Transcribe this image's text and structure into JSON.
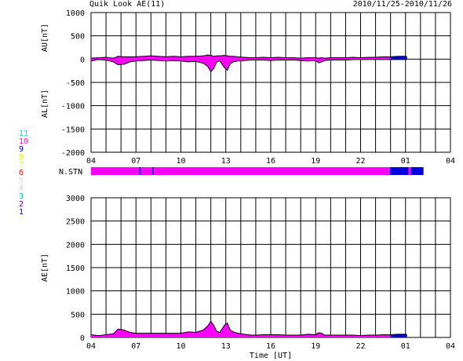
{
  "header": {
    "title": "Quik Look AE(11)",
    "date_range": "2010/11/25-2010/11/26"
  },
  "station_legend": [
    {
      "label": "11",
      "color": "#00e5e5"
    },
    {
      "label": "10",
      "color": "#ff00ff"
    },
    {
      "label": "9",
      "color": "#0000e0"
    },
    {
      "label": "8",
      "color": "#f0f000"
    },
    {
      "label": "7",
      "color": "#c8ff64"
    },
    {
      "label": "6",
      "color": "#ff0000"
    },
    {
      "label": "5",
      "color": "#d0d0d0"
    },
    {
      "label": "4",
      "color": "#d0d0d0"
    },
    {
      "label": "3",
      "color": "#20b2aa"
    },
    {
      "label": "2",
      "color": "#8b008b"
    },
    {
      "label": "1",
      "color": "#0000ff"
    }
  ],
  "chart_data": [
    {
      "type": "area",
      "name": "AU/AL panel",
      "ylabel_top": "AU[nT]",
      "ylabel_bottom": "AL[nT]",
      "xlabel": "",
      "x_tick_labels": [
        "04",
        "07",
        "10",
        "13",
        "16",
        "19",
        "22",
        "01",
        "04"
      ],
      "y_tick_labels": [
        "1000",
        "500",
        "0",
        "-500",
        "-1000",
        "-1500",
        "-2000"
      ],
      "ylim": [
        -2000,
        1000
      ],
      "xlim_hours": [
        4,
        28
      ],
      "grid": true,
      "fill_color": "#ff00ff",
      "recent_color": "#0000e0",
      "switch_hour": 24.0,
      "end_hour": 25.1,
      "x": [
        4.0,
        4.5,
        5.0,
        5.5,
        5.8,
        6.2,
        6.6,
        7.0,
        7.5,
        8.0,
        8.5,
        9.0,
        9.5,
        10.0,
        10.5,
        11.0,
        11.5,
        11.8,
        12.0,
        12.2,
        12.4,
        12.6,
        12.9,
        13.1,
        13.3,
        13.5,
        13.8,
        14.2,
        14.7,
        15.0,
        15.5,
        16.0,
        16.5,
        17.0,
        17.5,
        18.0,
        18.5,
        19.0,
        19.2,
        19.4,
        19.6,
        20.0,
        20.5,
        21.0,
        21.5,
        22.0,
        22.5,
        23.0,
        23.5,
        24.0,
        24.5,
        25.0,
        25.1
      ],
      "au": [
        20,
        30,
        40,
        20,
        60,
        50,
        50,
        50,
        60,
        70,
        60,
        50,
        60,
        50,
        60,
        60,
        70,
        90,
        80,
        60,
        70,
        70,
        80,
        70,
        60,
        60,
        50,
        40,
        30,
        30,
        40,
        30,
        40,
        30,
        30,
        20,
        30,
        30,
        20,
        30,
        20,
        30,
        30,
        30,
        40,
        30,
        40,
        40,
        50,
        50,
        60,
        60,
        50
      ],
      "al": [
        -40,
        -10,
        -20,
        -60,
        -120,
        -110,
        -60,
        -40,
        -30,
        -20,
        -30,
        -40,
        -30,
        -40,
        -60,
        -50,
        -90,
        -160,
        -270,
        -200,
        -60,
        -40,
        -180,
        -240,
        -100,
        -60,
        -40,
        -30,
        -20,
        -20,
        -20,
        -30,
        -20,
        -20,
        -20,
        -30,
        -40,
        -30,
        -80,
        -60,
        -30,
        -20,
        -20,
        -20,
        -10,
        -10,
        -10,
        -10,
        -10,
        -10,
        -10,
        -10,
        -10
      ]
    },
    {
      "type": "heatmap",
      "name": "station count bar",
      "label": "N.STN",
      "segments": [
        {
          "from": 4.0,
          "to": 7.2,
          "stations": 10
        },
        {
          "from": 7.2,
          "to": 7.3,
          "stations": 9
        },
        {
          "from": 7.3,
          "to": 8.1,
          "stations": 10
        },
        {
          "from": 8.1,
          "to": 8.2,
          "stations": 9
        },
        {
          "from": 8.2,
          "to": 23.95,
          "stations": 10
        },
        {
          "from": 23.95,
          "to": 25.2,
          "stations": 9
        },
        {
          "from": 25.2,
          "to": 25.35,
          "stations": 10
        },
        {
          "from": 25.35,
          "to": 26.2,
          "stations": 9
        }
      ]
    },
    {
      "type": "area",
      "name": "AE panel",
      "ylabel": "AE[nT]",
      "xlabel": "Time [UT]",
      "x_tick_labels": [
        "04",
        "07",
        "10",
        "13",
        "16",
        "19",
        "22",
        "01",
        "04"
      ],
      "y_tick_labels": [
        "3000",
        "2500",
        "2000",
        "1500",
        "1000",
        "500",
        "0"
      ],
      "ylim": [
        0,
        3000
      ],
      "xlim_hours": [
        4,
        28
      ],
      "grid": true,
      "fill_color": "#ff00ff",
      "recent_color": "#0000e0",
      "switch_hour": 24.0,
      "end_hour": 25.1,
      "x": [
        4.0,
        4.5,
        5.0,
        5.5,
        5.8,
        6.2,
        6.6,
        7.0,
        7.5,
        8.0,
        8.5,
        9.0,
        9.5,
        10.0,
        10.5,
        11.0,
        11.5,
        11.8,
        12.0,
        12.2,
        12.4,
        12.6,
        12.9,
        13.1,
        13.3,
        13.5,
        13.8,
        14.2,
        14.7,
        15.0,
        15.5,
        16.0,
        16.5,
        17.0,
        17.5,
        18.0,
        18.5,
        19.0,
        19.2,
        19.4,
        19.6,
        20.0,
        20.5,
        21.0,
        21.5,
        22.0,
        22.5,
        23.0,
        23.5,
        24.0,
        24.5,
        25.0,
        25.1
      ],
      "values": [
        60,
        40,
        60,
        80,
        180,
        160,
        110,
        90,
        90,
        90,
        90,
        90,
        90,
        90,
        120,
        110,
        160,
        250,
        350,
        260,
        130,
        110,
        260,
        310,
        160,
        120,
        90,
        70,
        50,
        50,
        60,
        60,
        60,
        50,
        50,
        50,
        70,
        60,
        100,
        90,
        50,
        50,
        50,
        50,
        50,
        40,
        50,
        50,
        60,
        60,
        70,
        70,
        60
      ]
    }
  ]
}
